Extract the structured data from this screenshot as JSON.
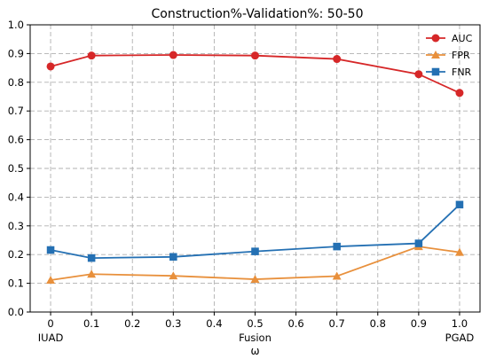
{
  "chart_data": {
    "type": "line",
    "title": "Construction%-Validation%: 50-50",
    "xlabel": "ω",
    "ylabel": "",
    "xlim": [
      -0.05,
      1.05
    ],
    "ylim": [
      0.0,
      1.0
    ],
    "grid": true,
    "legend_position": "top-right",
    "x_ticks": [
      0,
      0.1,
      0.2,
      0.3,
      0.4,
      0.5,
      0.6,
      0.7,
      0.8,
      0.9,
      1.0
    ],
    "x_tick_labels": [
      "0",
      "0.1",
      "0.2",
      "0.3",
      "0.4",
      "0.5",
      "0.6",
      "0.7",
      "0.8",
      "0.9",
      "1.0"
    ],
    "y_ticks": [
      0.0,
      0.1,
      0.2,
      0.3,
      0.4,
      0.5,
      0.6,
      0.7,
      0.8,
      0.9,
      1.0
    ],
    "y_tick_labels": [
      "0.0",
      "0.1",
      "0.2",
      "0.3",
      "0.4",
      "0.5",
      "0.6",
      "0.7",
      "0.8",
      "0.9",
      "1.0"
    ],
    "x_annotations": [
      {
        "x": 0,
        "text": "IUAD"
      },
      {
        "x": 0.5,
        "text": "Fusion"
      },
      {
        "x": 1.0,
        "text": "PGAD"
      }
    ],
    "x": [
      0,
      0.1,
      0.3,
      0.5,
      0.7,
      0.9,
      1.0
    ],
    "series": [
      {
        "name": "AUC",
        "color": "#d62728",
        "marker": "circle",
        "values": [
          0.855,
          0.893,
          0.895,
          0.893,
          0.881,
          0.828,
          0.763
        ]
      },
      {
        "name": "FPR",
        "color": "#e8903c",
        "marker": "triangle",
        "values": [
          0.111,
          0.132,
          0.126,
          0.114,
          0.125,
          0.228,
          0.208
        ]
      },
      {
        "name": "FNR",
        "color": "#2470b3",
        "marker": "square",
        "values": [
          0.216,
          0.188,
          0.192,
          0.211,
          0.228,
          0.239,
          0.374
        ]
      }
    ]
  }
}
